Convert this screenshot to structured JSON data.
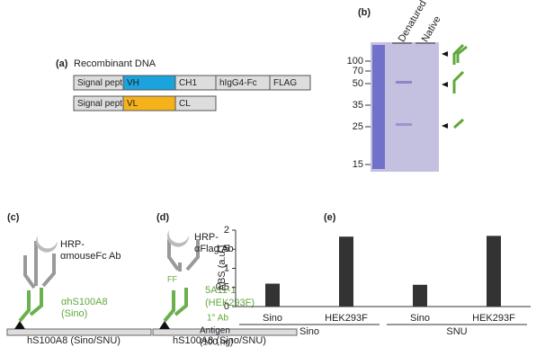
{
  "panel_a": {
    "label": "(a)",
    "title": "Recombinant DNA",
    "heavy_chain": [
      "Signal peptide",
      "VH",
      "CH1",
      "hIgG4-Fc",
      "FLAG"
    ],
    "light_chain": [
      "Signal peptide",
      "VL",
      "CL"
    ]
  },
  "panel_b": {
    "label": "(b)",
    "lanes": [
      "Denatured",
      "Native"
    ],
    "markers": [
      100,
      70,
      50,
      35,
      25,
      15
    ]
  },
  "panel_c": {
    "label": "(c)",
    "secondary": [
      "HRP-",
      "αmouseFc Ab"
    ],
    "primary": [
      "αhS100A8",
      "(Sino)"
    ],
    "antigen": "hS100A8 (Sino/SNU)"
  },
  "panel_d": {
    "label": "(d)",
    "secondary": [
      "HRP-",
      "αFlag Ab"
    ],
    "tag": "FF",
    "primary": [
      "5A11-1",
      "(HEK293F)"
    ],
    "antigen": "hS100A8 (Sino/SNU)"
  },
  "chart_data": {
    "type": "bar",
    "label": "(e)",
    "y_label": "ABS (a.u.)",
    "categories": [
      "Sino",
      "HEK293F",
      "Sino",
      "HEK293F"
    ],
    "values": [
      0.6,
      1.83,
      0.57,
      1.85
    ],
    "color": "#333333",
    "ylim": [
      0,
      2
    ],
    "yticks": [
      0,
      0.5,
      1,
      1.5,
      2
    ],
    "row_labels": [
      "1° Ab",
      "Antigen",
      "(100 ng)"
    ],
    "groups": [
      "Sino",
      "SNU"
    ]
  }
}
